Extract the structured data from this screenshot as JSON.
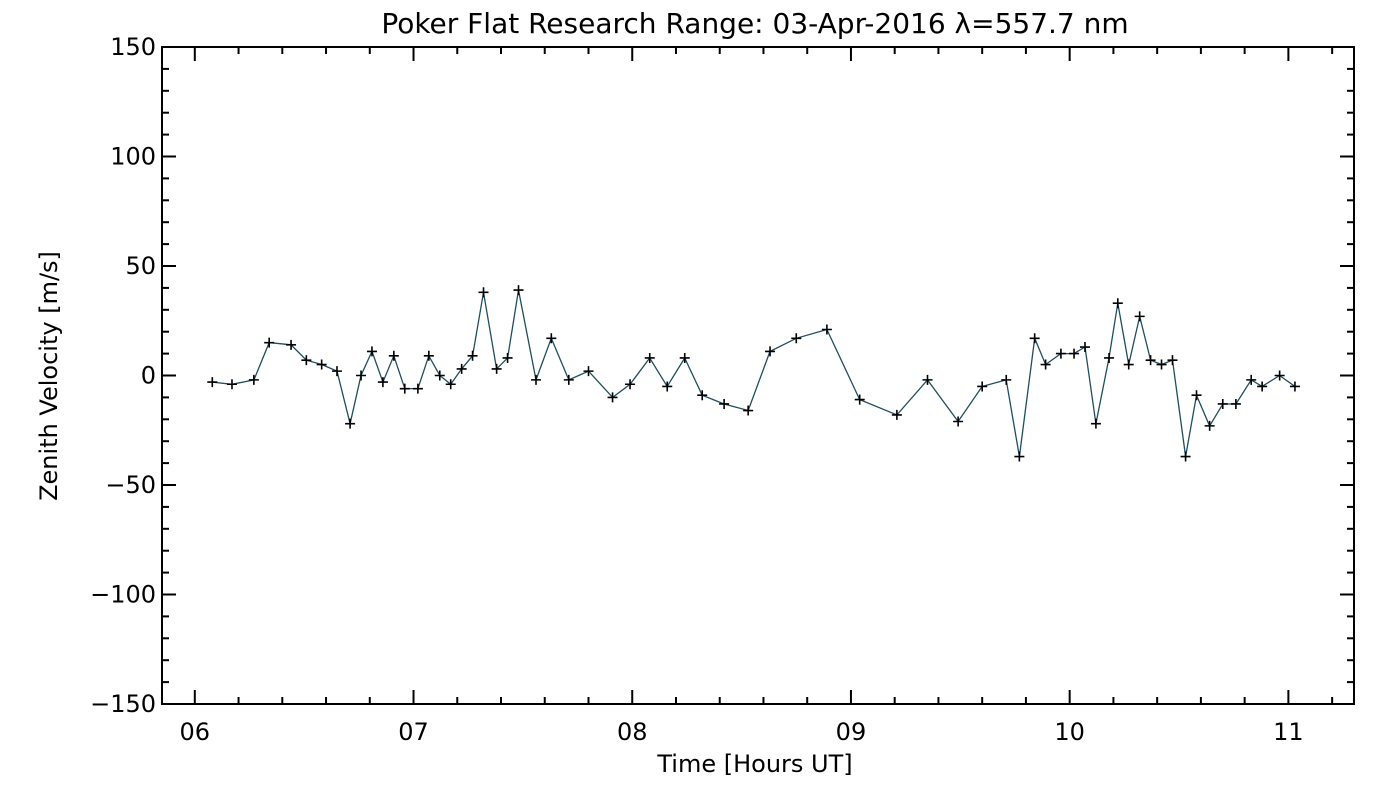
{
  "chart_data": {
    "type": "line",
    "title": "Poker Flat Research Range: 03-Apr-2016 λ=557.7 nm",
    "xlabel": "Time [Hours UT]",
    "ylabel": "Zenith Velocity [m/s]",
    "xlim": [
      5.85,
      11.3
    ],
    "ylim": [
      -150,
      150
    ],
    "x_ticks": [
      6,
      7,
      8,
      9,
      10,
      11
    ],
    "x_tick_labels": [
      "06",
      "07",
      "08",
      "09",
      "10",
      "11"
    ],
    "y_ticks": [
      -150,
      -100,
      -50,
      0,
      50,
      100,
      150
    ],
    "y_tick_labels": [
      "−150",
      "−100",
      "−50",
      "0",
      "50",
      "100",
      "150"
    ],
    "grid": false,
    "line_color": "#1f4e5f",
    "marker": "+",
    "x": [
      6.08,
      6.17,
      6.27,
      6.34,
      6.44,
      6.51,
      6.58,
      6.65,
      6.71,
      6.76,
      6.81,
      6.86,
      6.91,
      6.96,
      7.02,
      7.07,
      7.12,
      7.17,
      7.22,
      7.27,
      7.32,
      7.38,
      7.43,
      7.48,
      7.56,
      7.63,
      7.71,
      7.8,
      7.91,
      7.99,
      8.08,
      8.16,
      8.24,
      8.32,
      8.42,
      8.53,
      8.63,
      8.75,
      8.89,
      9.04,
      9.21,
      9.35,
      9.49,
      9.6,
      9.71,
      9.77,
      9.84,
      9.89,
      9.96,
      10.02,
      10.07,
      10.12,
      10.18,
      10.22,
      10.27,
      10.32,
      10.37,
      10.42,
      10.47,
      10.53,
      10.58,
      10.64,
      10.7,
      10.76,
      10.83,
      10.88,
      10.96,
      11.03
    ],
    "values": [
      -3,
      -4,
      -2,
      15,
      14,
      7,
      5,
      2,
      -22,
      0,
      11,
      -3,
      9,
      -6,
      -6,
      9,
      0,
      -4,
      3,
      9,
      38,
      3,
      8,
      39,
      -2,
      17,
      -2,
      2,
      -10,
      -4,
      8,
      -5,
      8,
      -9,
      -13,
      -16,
      11,
      17,
      21,
      -11,
      -18,
      -2,
      -21,
      -5,
      -2,
      -37,
      17,
      5,
      10,
      10,
      13,
      -22,
      8,
      33,
      5,
      27,
      7,
      5,
      7,
      -37,
      -9,
      -23,
      -13,
      -13,
      -2,
      -5,
      0,
      -5
    ]
  }
}
